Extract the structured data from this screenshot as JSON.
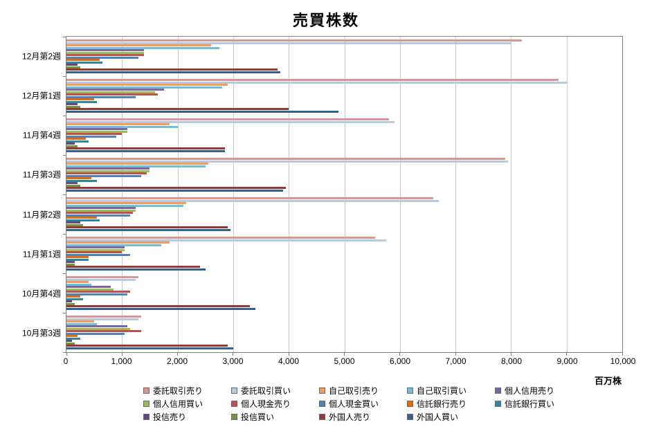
{
  "chart_data": {
    "type": "bar",
    "orientation": "horizontal",
    "title": "売買株数",
    "unit_label": "百万株",
    "xlim": [
      0,
      10000
    ],
    "grid": true,
    "legend_position": "bottom",
    "x_ticks": [
      "0",
      "1,000",
      "2,000",
      "3,000",
      "4,000",
      "5,000",
      "6,000",
      "7,000",
      "8,000",
      "9,000",
      "10,000"
    ],
    "categories": [
      "12月第2週",
      "12月第1週",
      "11月第4週",
      "11月第3週",
      "11月第2週",
      "11月第1週",
      "10月第4週",
      "10月第3週"
    ],
    "series": [
      {
        "name": "委託取引売り",
        "color": "#D99694",
        "values": [
          8200,
          8850,
          5800,
          7900,
          6600,
          5550,
          1300,
          1350
        ]
      },
      {
        "name": "委託取引買い",
        "color": "#B7C9E2",
        "values": [
          8000,
          9000,
          5900,
          7950,
          6700,
          5750,
          1250,
          1300
        ]
      },
      {
        "name": "自己取引売り",
        "color": "#F49D5B",
        "values": [
          2600,
          2900,
          1850,
          2550,
          2150,
          1850,
          400,
          500
        ]
      },
      {
        "name": "自己取引買い",
        "color": "#6EC0D2",
        "values": [
          2750,
          2800,
          2000,
          2500,
          2100,
          1700,
          450,
          550
        ]
      },
      {
        "name": "個人信用売り",
        "color": "#8064A2",
        "values": [
          1400,
          1750,
          1100,
          1500,
          1250,
          1050,
          800,
          1100
        ]
      },
      {
        "name": "個人信用買い",
        "color": "#9BBB59",
        "values": [
          1400,
          1600,
          1100,
          1500,
          1250,
          1050,
          850,
          1150
        ]
      },
      {
        "name": "個人現金売り",
        "color": "#C0504D",
        "values": [
          1400,
          1650,
          1000,
          1450,
          1200,
          1000,
          1150,
          1350
        ]
      },
      {
        "name": "個人現金買い",
        "color": "#4F81BD",
        "values": [
          1300,
          1250,
          900,
          1350,
          1150,
          1150,
          1100,
          1050
        ]
      },
      {
        "name": "信託銀行売り",
        "color": "#E26B0A",
        "values": [
          600,
          500,
          350,
          450,
          550,
          400,
          250,
          200
        ]
      },
      {
        "name": "信託銀行買い",
        "color": "#31859C",
        "values": [
          650,
          550,
          400,
          550,
          600,
          400,
          300,
          250
        ]
      },
      {
        "name": "投信売り",
        "color": "#60497B",
        "values": [
          200,
          200,
          150,
          200,
          250,
          150,
          100,
          100
        ]
      },
      {
        "name": "投信買い",
        "color": "#75923C",
        "values": [
          250,
          250,
          200,
          250,
          300,
          150,
          150,
          150
        ]
      },
      {
        "name": "外国人売り",
        "color": "#953735",
        "values": [
          3800,
          4000,
          2850,
          3950,
          2900,
          2400,
          3300,
          2900
        ]
      },
      {
        "name": "外国人買い",
        "color": "#33608C",
        "values": [
          3850,
          4900,
          2850,
          3900,
          2950,
          2500,
          3400,
          3000
        ]
      }
    ]
  }
}
